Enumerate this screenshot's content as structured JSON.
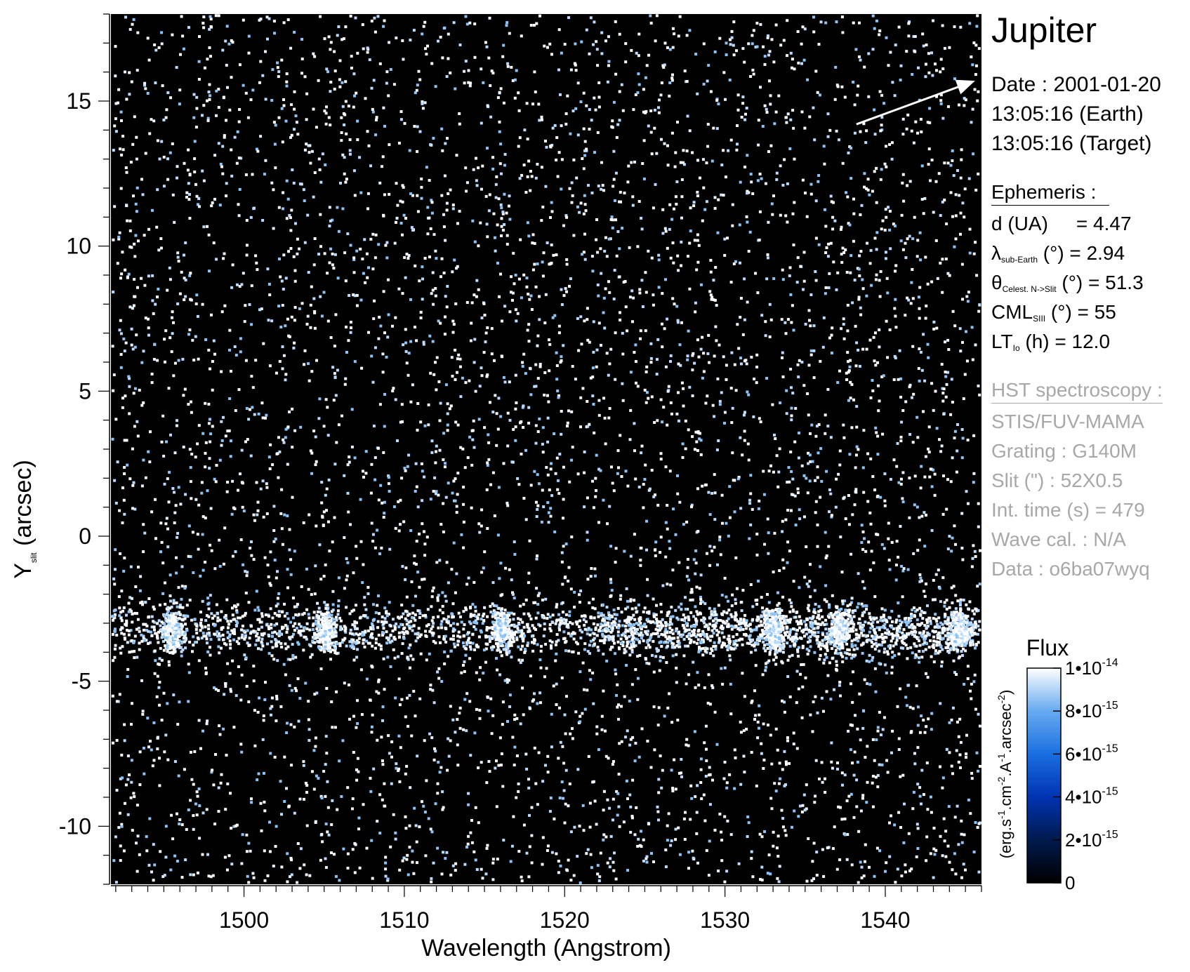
{
  "title": "Jupiter",
  "observation": {
    "date_line": "Date : 2001-01-20",
    "earth_time": "13:05:16 (Earth)",
    "target_time": "13:05:16 (Target)"
  },
  "ephemeris": {
    "heading": "Ephemeris :",
    "d_label": "d (UA)",
    "d_value": "= 4.47",
    "lambda_symbol": "λ",
    "lambda_sub": "sub-Earth",
    "lambda_rest": " (°)  = 2.94",
    "theta_symbol": "θ",
    "theta_sub": "Celest. N->Slit",
    "theta_rest": " (°) = 51.3",
    "cml_main": "CML",
    "cml_sub": "SIII",
    "cml_rest": " (°) = 55",
    "lt_main": "LT",
    "lt_sub": "Io",
    "lt_rest": " (h) = 12.0"
  },
  "instrument": {
    "heading": "HST spectroscopy :",
    "lines": [
      "STIS/FUV-MAMA",
      "Grating : G140M",
      "Slit (\") : 52X0.5",
      "Int. time (s) = 479",
      "Wave cal. : N/A",
      "Data : o6ba07wyq"
    ]
  },
  "colorbar": {
    "title": "Flux",
    "units_parts": [
      "(erg.s",
      "-1",
      ".cm",
      "-2",
      ".A",
      "-1",
      ".arcsec",
      "-2",
      ")"
    ],
    "ticks": [
      {
        "base": "1•10",
        "exp": "-14",
        "value": 1e-14
      },
      {
        "base": "8•10",
        "exp": "-15",
        "value": 8e-15
      },
      {
        "base": "6•10",
        "exp": "-15",
        "value": 6e-15
      },
      {
        "base": "4•10",
        "exp": "-15",
        "value": 4e-15
      },
      {
        "base": "2•10",
        "exp": "-15",
        "value": 2e-15
      },
      {
        "base": "0",
        "exp": "",
        "value": 0
      }
    ],
    "colors": [
      "#000000",
      "#001a4d",
      "#0033b3",
      "#1a6fe0",
      "#66aaf0",
      "#ffffff"
    ]
  },
  "chart_data": {
    "type": "heatmap",
    "xlabel": "Wavelength (Angstrom)",
    "ylabel_main": "Y",
    "ylabel_sub": "slit",
    "ylabel_rest": " (arcsec)",
    "xlim": [
      1491.7,
      1546.0
    ],
    "ylim": [
      -12.0,
      18.0
    ],
    "x_ticks": [
      1500,
      1510,
      1520,
      1530,
      1540
    ],
    "y_ticks": [
      -10,
      -5,
      0,
      5,
      10,
      15
    ],
    "x_minor_step": 1,
    "y_minor_step": 1,
    "zlim": [
      0,
      1e-14
    ],
    "background_level": 0,
    "emission_band": {
      "y_center": -3.2,
      "y_halfwidth": 1.3,
      "strong_x_range": [
        1522,
        1546
      ],
      "knots_x": [
        1495.5,
        1505,
        1516,
        1533,
        1537,
        1544.5
      ]
    },
    "direction_arrow": {
      "from": [
        1538.2,
        14.2
      ],
      "to": [
        1545.6,
        15.7
      ]
    }
  }
}
